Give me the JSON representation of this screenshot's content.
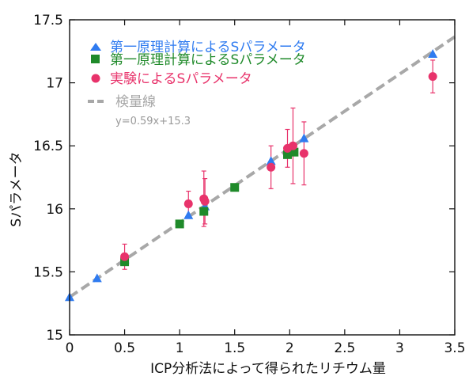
{
  "chart_data": {
    "type": "scatter",
    "xlabel": "ICP分析法によって得られたリチウム量",
    "ylabel": "Sパラメータ",
    "xlim": [
      0,
      3.5
    ],
    "ylim": [
      15,
      17.5
    ],
    "xticks": [
      "0",
      "0.5",
      "1",
      "1.5",
      "2",
      "2.5",
      "3",
      "3.5"
    ],
    "yticks": [
      "15",
      "15.5",
      "16",
      "16.5",
      "17",
      "17.5"
    ],
    "legend_position": "top-left",
    "series": [
      {
        "name": "第一原理計算によるSパラメータ",
        "marker": "triangle",
        "color": "#2f7bf0",
        "points": [
          [
            0,
            15.3
          ],
          [
            0.25,
            15.45
          ],
          [
            0.5,
            15.6
          ],
          [
            1.08,
            15.95
          ],
          [
            1.23,
            16.02
          ],
          [
            1.83,
            16.38
          ],
          [
            2.0,
            16.48
          ],
          [
            2.13,
            16.56
          ],
          [
            3.3,
            17.23
          ]
        ]
      },
      {
        "name": "第一原理計算によるSパラメータ",
        "marker": "square",
        "color": "#1f8a2a",
        "points": [
          [
            0.5,
            15.58
          ],
          [
            1.0,
            15.88
          ],
          [
            1.22,
            15.98
          ],
          [
            1.5,
            16.17
          ],
          [
            1.98,
            16.43
          ],
          [
            2.04,
            16.45
          ]
        ]
      },
      {
        "name": "実験によるSパラメータ",
        "marker": "circle",
        "color": "#e8336b",
        "points": [
          {
            "x": 0.5,
            "y": 15.62,
            "err": 0.1
          },
          {
            "x": 1.08,
            "y": 16.04,
            "err": 0.1
          },
          {
            "x": 1.22,
            "y": 16.08,
            "err": 0.22
          },
          {
            "x": 1.23,
            "y": 16.06,
            "err": 0.18
          },
          {
            "x": 1.83,
            "y": 16.33,
            "err": 0.17
          },
          {
            "x": 1.98,
            "y": 16.48,
            "err": 0.15
          },
          {
            "x": 2.03,
            "y": 16.5,
            "err": 0.3
          },
          {
            "x": 2.13,
            "y": 16.44,
            "err": 0.25
          },
          {
            "x": 3.3,
            "y": 17.05,
            "err": 0.13
          }
        ]
      }
    ],
    "fit_line": {
      "name": "検量線",
      "equation": "y=0.59x+15.3",
      "slope": 0.59,
      "intercept": 15.3,
      "color": "#a8a8a8",
      "style": "dashed"
    }
  }
}
